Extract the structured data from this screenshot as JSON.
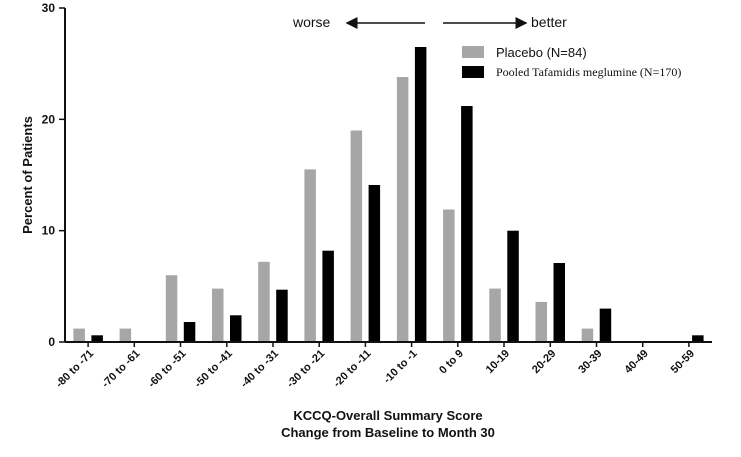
{
  "chart_data": {
    "type": "bar",
    "categories": [
      "-80 to -71",
      "-70 to -61",
      "-60 to -51",
      "-50 to -41",
      "-40 to -31",
      "-30 to -21",
      "-20 to -11",
      "-10 to -1",
      "0 to 9",
      "10-19",
      "20-29",
      "30-39",
      "40-49",
      "50-59"
    ],
    "series": [
      {
        "name": "Placebo (N=84)",
        "color": "#a6a6a6",
        "values": [
          1.2,
          1.2,
          6.0,
          4.8,
          7.2,
          15.5,
          19.0,
          23.8,
          11.9,
          4.8,
          3.6,
          1.2,
          0,
          0
        ]
      },
      {
        "name": "Pooled Tafamidis meglumine (N=170)",
        "color": "#000000",
        "values": [
          0.6,
          0,
          1.8,
          2.4,
          4.7,
          8.2,
          14.1,
          26.5,
          21.2,
          10.0,
          7.1,
          3.0,
          0,
          0.6
        ]
      }
    ],
    "yticks": [
      0,
      10,
      20,
      30
    ],
    "ylim": [
      0,
      30
    ],
    "ylabel": "Percent of Patients",
    "xlabel_line1": "KCCQ-Overall Summary Score",
    "xlabel_line2": "Change from  Baseline to Month 30",
    "annotations": {
      "worse": "worse",
      "better": "better"
    },
    "legend_position": "top-right"
  }
}
